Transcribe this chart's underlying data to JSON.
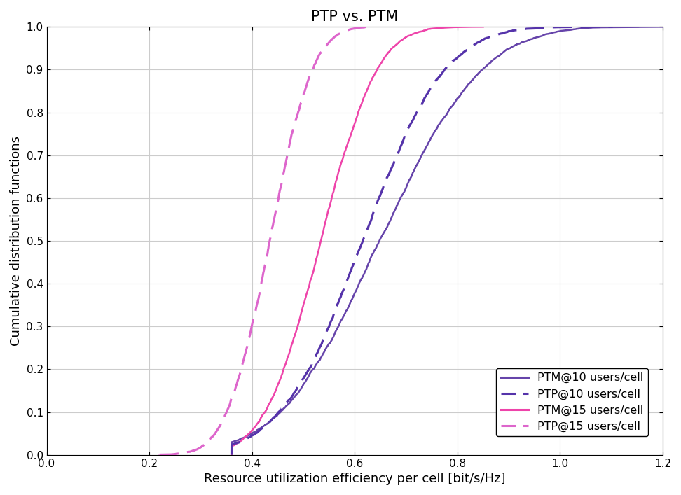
{
  "title": "PTP vs. PTM",
  "xlabel": "Resource utilization efficiency per cell [bit/s/Hz]",
  "ylabel": "Cumulative distribution functions",
  "xlim": [
    0,
    1.2
  ],
  "ylim": [
    0,
    1.0
  ],
  "xticks": [
    0,
    0.2,
    0.4,
    0.6,
    0.8,
    1.0,
    1.2
  ],
  "yticks": [
    0,
    0.1,
    0.2,
    0.3,
    0.4,
    0.5,
    0.6,
    0.7,
    0.8,
    0.9,
    1.0
  ],
  "ptm10_color": "#6644AA",
  "ptp10_color": "#5533AA",
  "ptm15_color": "#EE44AA",
  "ptp15_color": "#DD66CC",
  "background_color": "#ffffff",
  "grid_color": "#cccccc",
  "ptm10_mean": 0.65,
  "ptm10_std": 0.155,
  "ptp10_mean": 0.615,
  "ptp10_std": 0.125,
  "ptm15_mean": 0.535,
  "ptm15_std": 0.085,
  "ptp15_mean": 0.435,
  "ptp15_std": 0.065
}
